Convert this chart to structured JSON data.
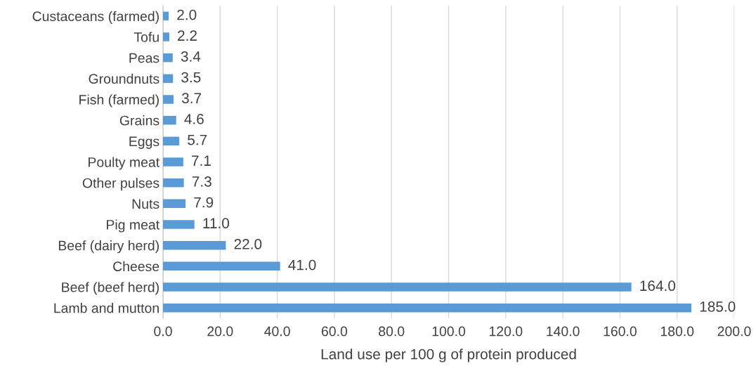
{
  "chart_data": {
    "type": "bar",
    "orientation": "horizontal",
    "xlabel": "Land use per 100 g of protein produced",
    "categories": [
      "Custaceans (farmed)",
      "Tofu",
      "Peas",
      "Groundnuts",
      "Fish (farmed)",
      "Grains",
      "Eggs",
      "Poulty meat",
      "Other pulses",
      "Nuts",
      "Pig meat",
      "Beef (dairy herd)",
      "Cheese",
      "Beef (beef herd)",
      "Lamb and mutton"
    ],
    "values": [
      2.0,
      2.2,
      3.4,
      3.5,
      3.7,
      4.6,
      5.7,
      7.1,
      7.3,
      7.9,
      11.0,
      22.0,
      41.0,
      164.0,
      185.0
    ],
    "value_labels": [
      "2.0",
      "2.2",
      "3.4",
      "3.5",
      "3.7",
      "4.6",
      "5.7",
      "7.1",
      "7.3",
      "7.9",
      "11.0",
      "22.0",
      "41.0",
      "164.0",
      "185.0"
    ],
    "color": "#5b9bd5",
    "xlim": [
      0,
      200
    ],
    "xticks": [
      {
        "value": 0,
        "label": "0.0"
      },
      {
        "value": 20,
        "label": "20.0"
      },
      {
        "value": 40,
        "label": "40.0"
      },
      {
        "value": 60,
        "label": "60.0"
      },
      {
        "value": 80,
        "label": "80.0"
      },
      {
        "value": 100,
        "label": "100.0"
      },
      {
        "value": 120,
        "label": "120.0"
      },
      {
        "value": 140,
        "label": "140.0"
      },
      {
        "value": 160,
        "label": "160.0"
      },
      {
        "value": 180,
        "label": "180.0"
      },
      {
        "value": 200,
        "label": "200.0"
      }
    ],
    "grid": "x"
  }
}
